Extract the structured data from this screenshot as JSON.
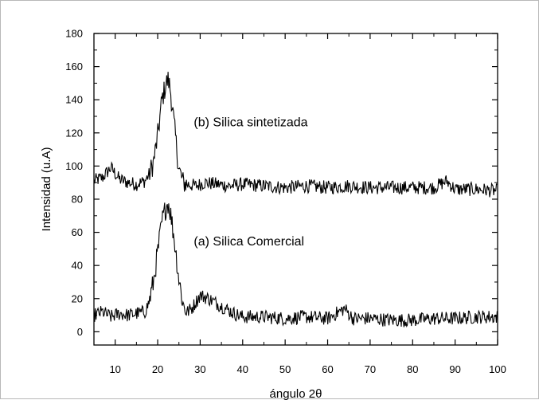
{
  "chart_data": {
    "type": "line",
    "title": "",
    "xlabel": "ángulo 2θ",
    "ylabel": "Intensidad (u.A)",
    "xlim": [
      5,
      100
    ],
    "ylim": [
      -8,
      180
    ],
    "xticks": [
      10,
      20,
      30,
      40,
      50,
      60,
      70,
      80,
      90,
      100
    ],
    "yticks": [
      0,
      20,
      40,
      60,
      80,
      100,
      120,
      140,
      160,
      180
    ],
    "grid": false,
    "legend": "none",
    "line_color": "#000000",
    "annotations": [
      {
        "text": "(b) Silica sintetizada",
        "x": 28.5,
        "y": 124
      },
      {
        "text": "(a) Silica Comercial",
        "x": 28.5,
        "y": 52
      }
    ],
    "series": [
      {
        "x": [
          5,
          7,
          9,
          11,
          13,
          15,
          17,
          18,
          19,
          20,
          21,
          22,
          22.5,
          23,
          24,
          25,
          26,
          27,
          29,
          31,
          34,
          37,
          40,
          45,
          50,
          55,
          60,
          65,
          70,
          75,
          80,
          85,
          88,
          90,
          95,
          100
        ],
        "values": [
          91,
          93,
          99,
          92,
          90,
          89,
          91,
          95,
          102,
          118,
          140,
          150,
          152,
          146,
          122,
          98,
          90,
          89,
          88,
          90,
          89,
          88,
          89,
          88,
          87,
          88,
          87,
          88,
          87,
          87,
          87,
          87,
          91,
          86,
          86,
          85
        ]
      },
      {
        "x": [
          5,
          7,
          9,
          11,
          13,
          15,
          17,
          18,
          19,
          20,
          21,
          22,
          22.5,
          23,
          24,
          25,
          26,
          27,
          28,
          30,
          32,
          34,
          36,
          38,
          40,
          45,
          50,
          55,
          60,
          64,
          66,
          70,
          75,
          80,
          85,
          90,
          95,
          100
        ],
        "values": [
          10,
          12,
          9,
          11,
          10,
          11,
          12,
          18,
          30,
          48,
          66,
          76,
          78,
          72,
          54,
          32,
          16,
          12,
          14,
          22,
          20,
          17,
          14,
          11,
          9,
          9,
          8,
          9,
          8,
          14,
          8,
          8,
          7,
          7,
          8,
          8,
          9,
          9
        ]
      }
    ]
  }
}
